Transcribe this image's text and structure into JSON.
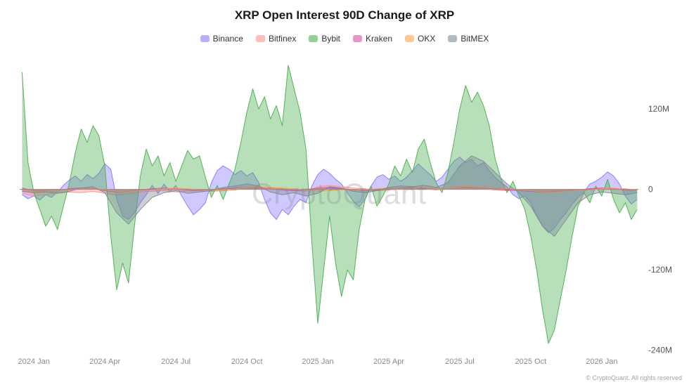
{
  "title": "XRP Open Interest 90D Change of XRP",
  "watermark": "CryptoQuant",
  "copyright": "© CryptoQuant. All rights reserved",
  "chart_data": {
    "type": "area",
    "title": "XRP Open Interest 90D Change of XRP",
    "xlabel": "",
    "ylabel": "",
    "values_unit": "millions (M)",
    "x_unit": "months since 2024-01",
    "xlim": [
      -0.6,
      25.55
    ],
    "ylim": [
      -252,
      205
    ],
    "grid": false,
    "legend_position": "top",
    "x_ticks": [
      {
        "t": 0,
        "label": "2024 Jan"
      },
      {
        "t": 3,
        "label": "2024 Apr"
      },
      {
        "t": 6,
        "label": "2024 Jul"
      },
      {
        "t": 9,
        "label": "2024 Oct"
      },
      {
        "t": 12,
        "label": "2025 Jan"
      },
      {
        "t": 15,
        "label": "2025 Apr"
      },
      {
        "t": 18,
        "label": "2025 Jul"
      },
      {
        "t": 21,
        "label": "2025 Oct"
      },
      {
        "t": 24,
        "label": "2026 Jan"
      }
    ],
    "y_ticks": [
      {
        "v": 120,
        "label": "120M"
      },
      {
        "v": 0,
        "label": "0"
      },
      {
        "v": -120,
        "label": "-120M"
      },
      {
        "v": -240,
        "label": "-240M"
      }
    ],
    "series": [
      {
        "name": "Binance",
        "color": "#8979ff",
        "x": [
          -0.5,
          -0.25,
          0,
          0.25,
          0.5,
          0.75,
          1,
          1.25,
          1.5,
          1.75,
          2,
          2.25,
          2.5,
          2.75,
          3,
          3.25,
          3.5,
          3.75,
          4,
          4.25,
          4.5,
          4.75,
          5,
          5.25,
          5.5,
          5.75,
          6,
          6.25,
          6.5,
          6.75,
          7,
          7.25,
          7.5,
          7.75,
          8,
          8.25,
          8.5,
          8.75,
          9,
          9.25,
          9.5,
          9.75,
          10,
          10.25,
          10.5,
          10.75,
          11,
          11.25,
          11.5,
          11.75,
          12,
          12.25,
          12.5,
          12.75,
          13,
          13.25,
          13.5,
          13.75,
          14,
          14.25,
          14.5,
          14.75,
          15,
          15.25,
          15.5,
          15.75,
          16,
          16.25,
          16.5,
          16.75,
          17,
          17.25,
          17.5,
          17.75,
          18,
          18.25,
          18.5,
          18.75,
          19,
          19.25,
          19.5,
          19.75,
          20,
          20.25,
          20.5,
          20.75,
          21,
          21.25,
          21.5,
          21.75,
          22,
          22.25,
          22.5,
          22.75,
          23,
          23.25,
          23.5,
          23.75,
          24,
          24.25,
          24.5,
          24.75,
          25,
          25.25,
          25.5
        ],
        "values": [
          -8,
          -14,
          -10,
          -16,
          -8,
          -12,
          -4,
          6,
          14,
          20,
          12,
          22,
          16,
          24,
          38,
          30,
          -15,
          -40,
          -45,
          -35,
          -20,
          -8,
          6,
          -6,
          8,
          -4,
          6,
          -10,
          -25,
          -38,
          -30,
          -20,
          10,
          28,
          35,
          30,
          22,
          28,
          20,
          25,
          10,
          -15,
          -35,
          -45,
          -30,
          -38,
          -25,
          -15,
          -20,
          5,
          22,
          30,
          24,
          15,
          8,
          -5,
          -18,
          -26,
          -15,
          5,
          18,
          22,
          15,
          20,
          12,
          18,
          28,
          38,
          30,
          22,
          12,
          18,
          30,
          42,
          48,
          40,
          45,
          35,
          40,
          28,
          18,
          10,
          4,
          -8,
          -14,
          -10,
          -20,
          -40,
          -55,
          -65,
          -58,
          -45,
          -35,
          -22,
          -12,
          -4,
          8,
          12,
          18,
          26,
          20,
          8,
          -10,
          -22,
          -15
        ]
      },
      {
        "name": "Bitfinex",
        "color": "#ff928a",
        "x": [
          -0.5,
          0,
          0.5,
          1,
          1.5,
          2,
          2.5,
          3,
          3.5,
          4,
          4.5,
          5,
          5.5,
          6,
          6.5,
          7,
          7.5,
          8,
          8.5,
          9,
          9.5,
          10,
          10.5,
          11,
          11.5,
          12,
          12.5,
          13,
          13.5,
          14,
          14.5,
          15,
          15.5,
          16,
          16.5,
          17,
          17.5,
          18,
          18.5,
          19,
          19.5,
          20,
          20.5,
          21,
          21.5,
          22,
          22.5,
          23,
          23.5,
          24,
          24.5,
          25,
          25.5
        ],
        "values": [
          -6,
          -10,
          -8,
          -6,
          -4,
          -5,
          -3,
          -6,
          -9,
          -7,
          -4,
          -3,
          -2,
          -4,
          -3,
          -2,
          -3,
          -2,
          -1,
          2,
          3,
          2,
          1,
          -2,
          -3,
          4,
          6,
          4,
          2,
          1,
          -2,
          -1,
          1,
          2,
          1,
          -1,
          2,
          3,
          2,
          1,
          -1,
          -2,
          -1,
          -3,
          -5,
          -4,
          -2,
          -1,
          1,
          2,
          1,
          -1,
          -2
        ]
      },
      {
        "name": "Bybit",
        "color": "#4caf50",
        "x": [
          -0.5,
          -0.25,
          0,
          0.25,
          0.5,
          0.75,
          1,
          1.25,
          1.5,
          1.75,
          2,
          2.25,
          2.5,
          2.75,
          3,
          3.25,
          3.5,
          3.75,
          4,
          4.25,
          4.5,
          4.75,
          5,
          5.25,
          5.5,
          5.75,
          6,
          6.25,
          6.5,
          6.75,
          7,
          7.25,
          7.5,
          7.75,
          8,
          8.25,
          8.5,
          8.75,
          9,
          9.25,
          9.5,
          9.75,
          10,
          10.25,
          10.5,
          10.75,
          11,
          11.25,
          11.5,
          11.75,
          12,
          12.25,
          12.5,
          12.75,
          13,
          13.25,
          13.5,
          13.75,
          14,
          14.25,
          14.5,
          14.75,
          15,
          15.25,
          15.5,
          15.75,
          16,
          16.25,
          16.5,
          16.75,
          17,
          17.25,
          17.5,
          17.75,
          18,
          18.25,
          18.5,
          18.75,
          19,
          19.25,
          19.5,
          19.75,
          20,
          20.25,
          20.5,
          20.75,
          21,
          21.25,
          21.5,
          21.75,
          22,
          22.25,
          22.5,
          22.75,
          23,
          23.25,
          23.5,
          23.75,
          24,
          24.25,
          24.5,
          24.75,
          25,
          25.25,
          25.5
        ],
        "values": [
          175,
          40,
          -5,
          -30,
          -55,
          -40,
          -60,
          -25,
          10,
          55,
          90,
          70,
          95,
          80,
          35,
          -70,
          -150,
          -110,
          -140,
          -55,
          20,
          60,
          35,
          50,
          20,
          40,
          12,
          35,
          58,
          45,
          50,
          18,
          -12,
          6,
          -15,
          8,
          30,
          70,
          115,
          150,
          120,
          138,
          105,
          125,
          95,
          185,
          150,
          115,
          60,
          -80,
          -200,
          -120,
          -40,
          -110,
          -160,
          -120,
          -135,
          -60,
          -15,
          5,
          -25,
          -10,
          8,
          35,
          20,
          45,
          25,
          60,
          75,
          40,
          10,
          -5,
          25,
          70,
          120,
          155,
          130,
          145,
          125,
          95,
          45,
          15,
          -5,
          12,
          -10,
          -30,
          -70,
          -120,
          -180,
          -230,
          -210,
          -165,
          -120,
          -70,
          -25,
          -5,
          -20,
          5,
          -10,
          15,
          -15,
          -35,
          -20,
          -45,
          -30
        ]
      },
      {
        "name": "Kraken",
        "color": "#d94fa6",
        "x": [
          -0.5,
          0,
          0.5,
          1,
          1.5,
          2,
          2.5,
          3,
          3.5,
          4,
          4.5,
          5,
          5.5,
          6,
          6.5,
          7,
          7.5,
          8,
          8.5,
          9,
          9.5,
          10,
          10.5,
          11,
          11.5,
          12,
          12.5,
          13,
          13.5,
          14,
          14.5,
          15,
          15.5,
          16,
          16.5,
          17,
          17.5,
          18,
          18.5,
          19,
          19.5,
          20,
          20.5,
          21,
          21.5,
          22,
          22.5,
          23,
          23.5,
          24,
          24.5,
          25,
          25.5
        ],
        "values": [
          2,
          -2,
          -3,
          -2,
          1,
          2,
          1,
          -2,
          -4,
          -3,
          -1,
          1,
          2,
          1,
          -1,
          -2,
          -1,
          1,
          2,
          3,
          2,
          1,
          -1,
          -2,
          -1,
          2,
          3,
          1,
          -1,
          -2,
          -1,
          1,
          2,
          3,
          2,
          1,
          2,
          4,
          3,
          2,
          1,
          -1,
          -2,
          -3,
          -4,
          -3,
          -2,
          -1,
          1,
          2,
          1,
          -1,
          -1
        ]
      },
      {
        "name": "OKX",
        "color": "#ffa14a",
        "x": [
          -0.5,
          0,
          0.5,
          1,
          1.5,
          2,
          2.5,
          3,
          3.5,
          4,
          4.5,
          5,
          5.5,
          6,
          6.5,
          7,
          7.5,
          8,
          8.5,
          9,
          9.5,
          10,
          10.5,
          11,
          11.5,
          12,
          12.5,
          13,
          13.5,
          14,
          14.5,
          15,
          15.5,
          16,
          16.5,
          17,
          17.5,
          18,
          18.5,
          19,
          19.5,
          20,
          20.5,
          21,
          21.5,
          22,
          22.5,
          23,
          23.5,
          24,
          24.5,
          25,
          25.5
        ],
        "values": [
          -2,
          -4,
          -3,
          -2,
          -1,
          1,
          2,
          -1,
          -3,
          -4,
          -2,
          -1,
          1,
          2,
          1,
          -1,
          -2,
          -1,
          1,
          3,
          4,
          3,
          2,
          1,
          -1,
          -3,
          -2,
          -1,
          -2,
          -1,
          1,
          2,
          1,
          2,
          3,
          1,
          2,
          4,
          5,
          3,
          2,
          1,
          -1,
          -2,
          -4,
          -5,
          -3,
          -2,
          -1,
          1,
          2,
          1,
          -1
        ]
      },
      {
        "name": "BitMEX",
        "color": "#7d8a96",
        "x": [
          -0.5,
          0,
          0.5,
          1,
          1.5,
          2,
          2.5,
          3,
          3.5,
          4,
          4.5,
          5,
          5.5,
          6,
          6.5,
          7,
          7.5,
          8,
          8.5,
          9,
          9.5,
          10,
          10.5,
          11,
          11.5,
          12,
          12.5,
          13,
          13.5,
          14,
          14.5,
          15,
          15.5,
          16,
          16.5,
          17,
          17.5,
          18,
          18.5,
          19,
          19.5,
          20,
          20.5,
          21,
          21.5,
          22,
          22.5,
          23,
          23.5,
          24,
          24.5,
          25,
          25.5
        ],
        "values": [
          -3,
          -5,
          -4,
          -6,
          -3,
          2,
          4,
          -5,
          -35,
          -52,
          -30,
          -12,
          -5,
          -2,
          -6,
          -4,
          -2,
          3,
          5,
          8,
          5,
          -4,
          -8,
          -5,
          -10,
          -6,
          4,
          2,
          -3,
          -5,
          -2,
          3,
          5,
          4,
          6,
          3,
          10,
          35,
          50,
          42,
          25,
          8,
          -5,
          -25,
          -55,
          -70,
          -45,
          -20,
          -8,
          -4,
          -6,
          -8,
          -5
        ]
      }
    ]
  }
}
